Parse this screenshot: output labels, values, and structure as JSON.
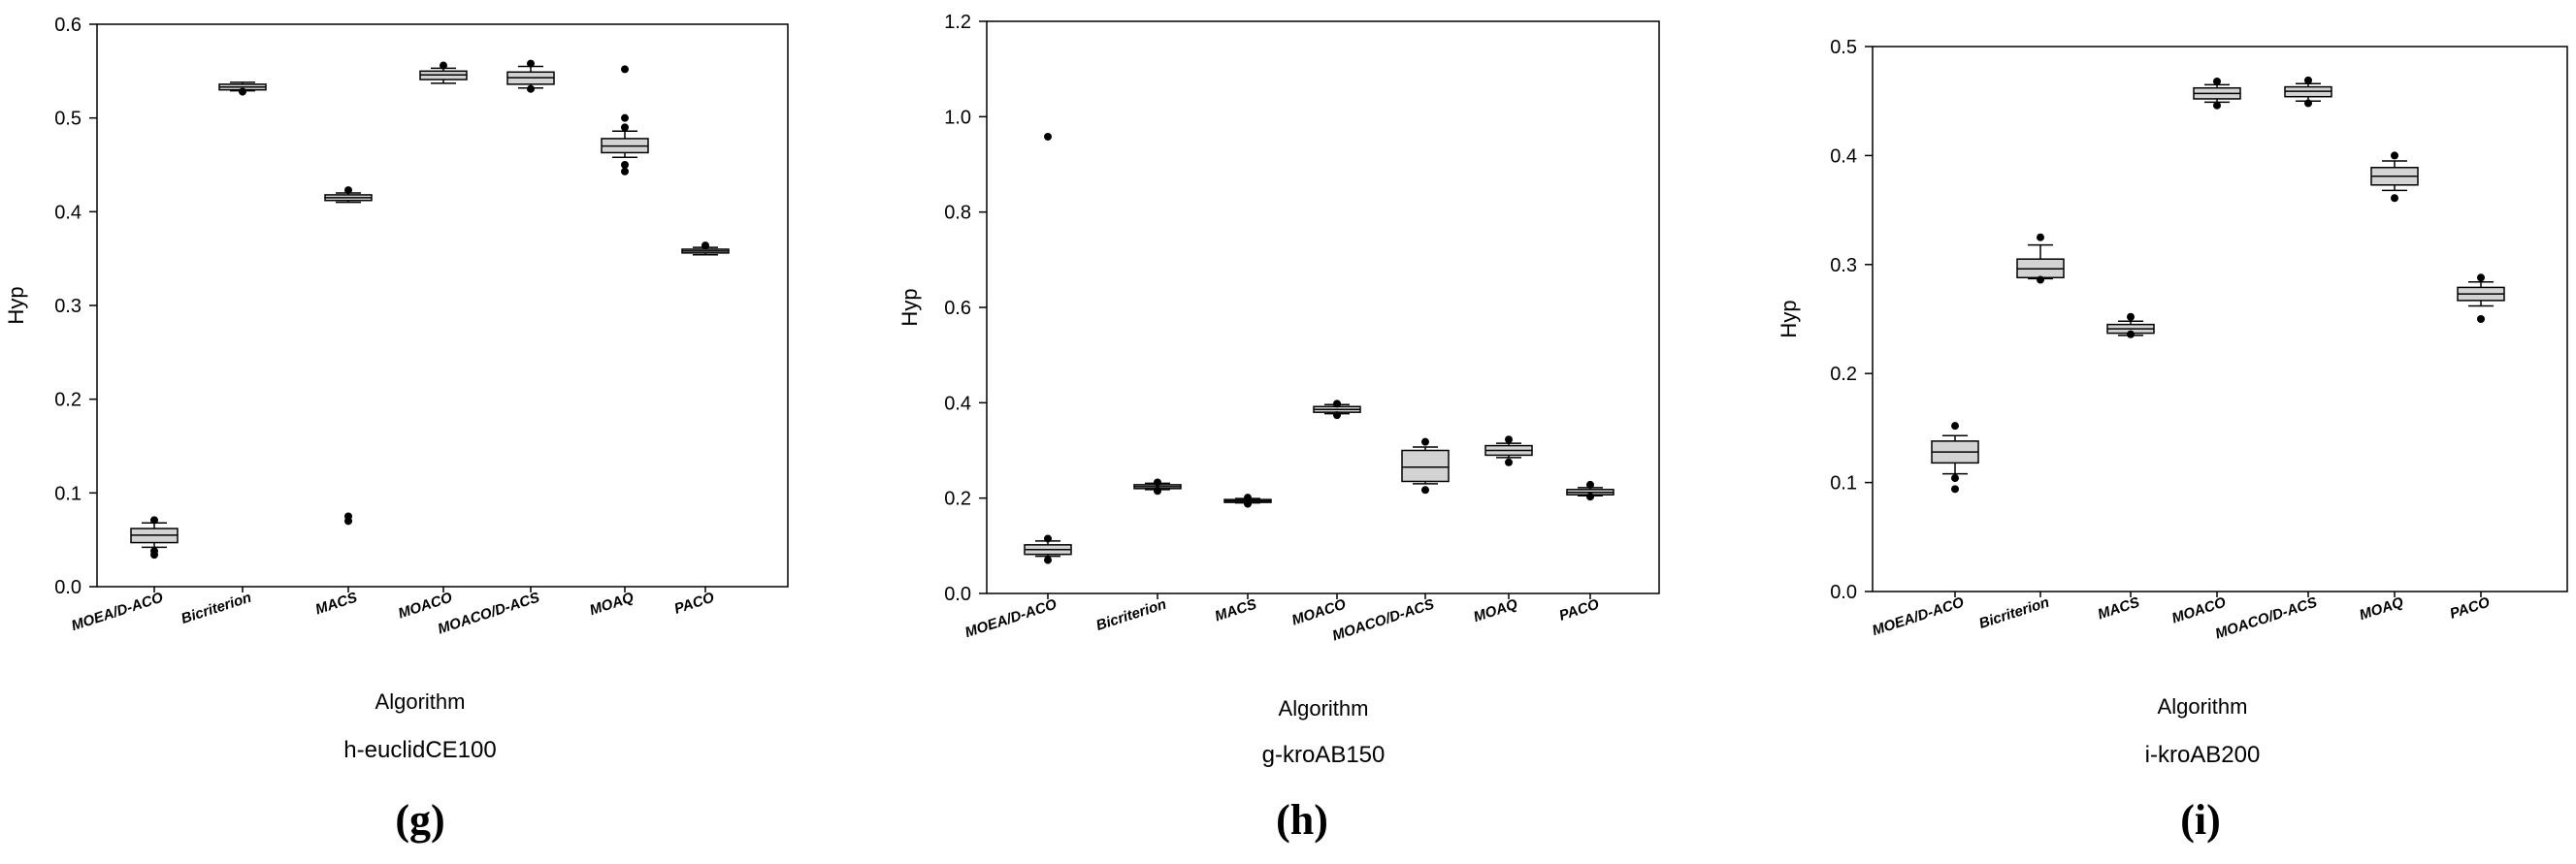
{
  "chart_data": [
    {
      "type": "box",
      "panel_label": "(g)",
      "subtitle": "h-euclidCE100",
      "xlabel": "Algorithm",
      "ylabel": "Hyp",
      "ylim": [
        0,
        0.6
      ],
      "yticks": [
        "0.0",
        "0.1",
        "0.2",
        "0.3",
        "0.4",
        "0.5",
        "0.6"
      ],
      "categories": [
        "MOEA/D-ACO",
        "Bicriterion",
        "MACS",
        "MOACO",
        "MOACO/D-ACS",
        "MOAQ",
        "PACO"
      ],
      "boxes": [
        {
          "whisker_low": 0.042,
          "q1": 0.047,
          "median": 0.055,
          "q3": 0.062,
          "whisker_high": 0.068,
          "outliers": [
            0.071,
            0.038,
            0.034
          ]
        },
        {
          "whisker_low": 0.529,
          "q1": 0.53,
          "median": 0.533,
          "q3": 0.536,
          "whisker_high": 0.538,
          "outliers": [
            0.528
          ]
        },
        {
          "whisker_low": 0.41,
          "q1": 0.412,
          "median": 0.415,
          "q3": 0.418,
          "whisker_high": 0.42,
          "outliers": [
            0.423,
            0.075,
            0.07
          ]
        },
        {
          "whisker_low": 0.537,
          "q1": 0.541,
          "median": 0.546,
          "q3": 0.55,
          "whisker_high": 0.553,
          "outliers": [
            0.556
          ]
        },
        {
          "whisker_low": 0.532,
          "q1": 0.536,
          "median": 0.543,
          "q3": 0.549,
          "whisker_high": 0.555,
          "outliers": [
            0.558,
            0.531
          ]
        },
        {
          "whisker_low": 0.458,
          "q1": 0.463,
          "median": 0.47,
          "q3": 0.478,
          "whisker_high": 0.486,
          "outliers": [
            0.552,
            0.5,
            0.49,
            0.45,
            0.443
          ]
        },
        {
          "whisker_low": 0.354,
          "q1": 0.356,
          "median": 0.358,
          "q3": 0.36,
          "whisker_high": 0.362,
          "outliers": [
            0.364
          ]
        }
      ]
    },
    {
      "type": "box",
      "panel_label": "(h)",
      "subtitle": "g-kroAB150",
      "xlabel": "Algorithm",
      "ylabel": "Hyp",
      "ylim": [
        0,
        1.2
      ],
      "yticks": [
        "0.0",
        "0.2",
        "0.4",
        "0.6",
        "0.8",
        "1.0",
        "1.2"
      ],
      "categories": [
        "MOEA/D-ACO",
        "Bicriterion",
        "MACS",
        "MOACO",
        "MOACO/D-ACS",
        "MOAQ",
        "PACO"
      ],
      "boxes": [
        {
          "whisker_low": 0.078,
          "q1": 0.082,
          "median": 0.092,
          "q3": 0.102,
          "whisker_high": 0.11,
          "outliers": [
            0.958,
            0.115,
            0.07
          ]
        },
        {
          "whisker_low": 0.218,
          "q1": 0.22,
          "median": 0.224,
          "q3": 0.228,
          "whisker_high": 0.231,
          "outliers": [
            0.233,
            0.215
          ]
        },
        {
          "whisker_low": 0.19,
          "q1": 0.191,
          "median": 0.194,
          "q3": 0.197,
          "whisker_high": 0.199,
          "outliers": [
            0.201,
            0.188
          ]
        },
        {
          "whisker_low": 0.377,
          "q1": 0.38,
          "median": 0.386,
          "q3": 0.392,
          "whisker_high": 0.396,
          "outliers": [
            0.398,
            0.374
          ]
        },
        {
          "whisker_low": 0.23,
          "q1": 0.235,
          "median": 0.265,
          "q3": 0.3,
          "whisker_high": 0.307,
          "outliers": [
            0.318,
            0.217
          ]
        },
        {
          "whisker_low": 0.285,
          "q1": 0.29,
          "median": 0.3,
          "q3": 0.31,
          "whisker_high": 0.315,
          "outliers": [
            0.323,
            0.275
          ]
        },
        {
          "whisker_low": 0.205,
          "q1": 0.207,
          "median": 0.212,
          "q3": 0.218,
          "whisker_high": 0.222,
          "outliers": [
            0.228,
            0.203
          ]
        }
      ]
    },
    {
      "type": "box",
      "panel_label": "(i)",
      "subtitle": "i-kroAB200",
      "xlabel": "Algorithm",
      "ylabel": "Hyp",
      "ylim": [
        0,
        0.5
      ],
      "yticks": [
        "0.0",
        "0.1",
        "0.2",
        "0.3",
        "0.4",
        "0.5"
      ],
      "categories": [
        "MOEA/D-ACO",
        "Bicriterion",
        "MACS",
        "MOACO",
        "MOACO/D-ACS",
        "MOAQ",
        "PACO"
      ],
      "boxes": [
        {
          "whisker_low": 0.108,
          "q1": 0.118,
          "median": 0.128,
          "q3": 0.138,
          "whisker_high": 0.143,
          "outliers": [
            0.152,
            0.104,
            0.094
          ]
        },
        {
          "whisker_low": 0.287,
          "q1": 0.288,
          "median": 0.296,
          "q3": 0.305,
          "whisker_high": 0.318,
          "outliers": [
            0.325,
            0.286
          ]
        },
        {
          "whisker_low": 0.235,
          "q1": 0.237,
          "median": 0.241,
          "q3": 0.245,
          "whisker_high": 0.248,
          "outliers": [
            0.252,
            0.236
          ]
        },
        {
          "whisker_low": 0.449,
          "q1": 0.452,
          "median": 0.457,
          "q3": 0.462,
          "whisker_high": 0.465,
          "outliers": [
            0.468,
            0.446
          ]
        },
        {
          "whisker_low": 0.45,
          "q1": 0.454,
          "median": 0.459,
          "q3": 0.463,
          "whisker_high": 0.466,
          "outliers": [
            0.469,
            0.448
          ]
        },
        {
          "whisker_low": 0.368,
          "q1": 0.373,
          "median": 0.381,
          "q3": 0.389,
          "whisker_high": 0.395,
          "outliers": [
            0.4,
            0.361
          ]
        },
        {
          "whisker_low": 0.262,
          "q1": 0.267,
          "median": 0.273,
          "q3": 0.279,
          "whisker_high": 0.284,
          "outliers": [
            0.288,
            0.25
          ]
        }
      ]
    }
  ],
  "style": {
    "box_fill": "#d3d3d3",
    "stroke": "#000000",
    "background": "#ffffff"
  }
}
